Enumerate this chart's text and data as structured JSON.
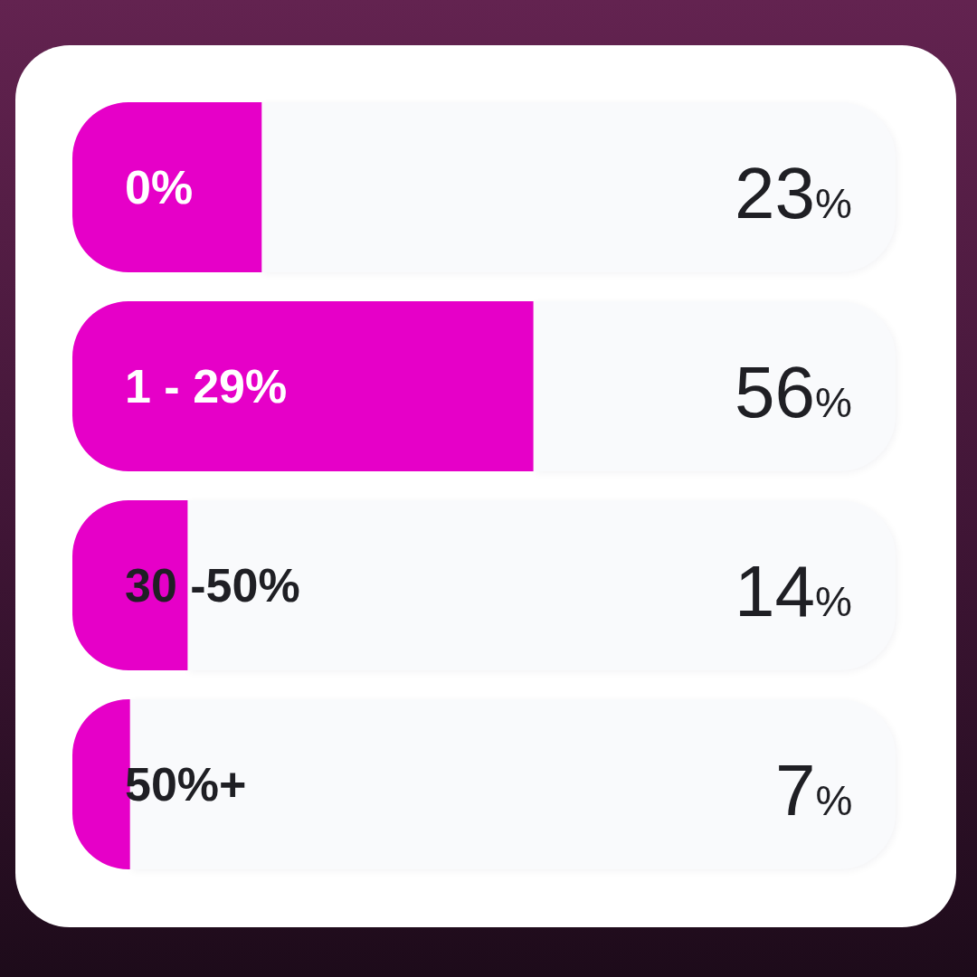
{
  "chart_data": {
    "type": "bar",
    "orientation": "horizontal",
    "categories": [
      "0%",
      "1 - 29%",
      "30 -50%",
      "50%+"
    ],
    "values": [
      23,
      56,
      14,
      7
    ],
    "value_labels": [
      "23%",
      "56%",
      "14%",
      "7%"
    ],
    "color": "#e600c8",
    "xlim": [
      0,
      100
    ],
    "tick_labels": "y"
  }
}
